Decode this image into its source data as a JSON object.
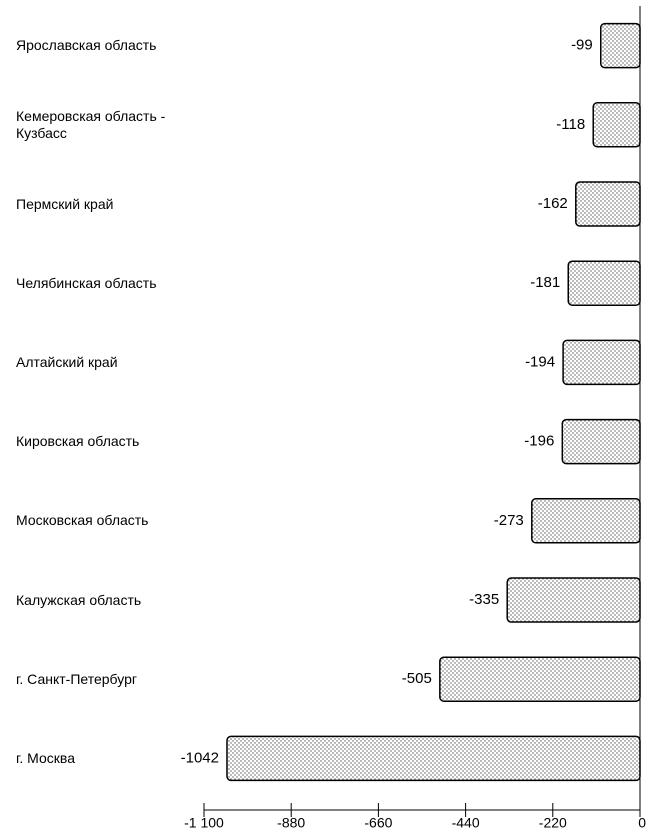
{
  "chart_data": {
    "type": "bar",
    "orientation": "horizontal",
    "categories": [
      "Ярославская область",
      "Кемеровская область - Кузбасс",
      "Пермский край",
      "Челябинская область",
      "Алтайский край",
      "Кировская область",
      "Московская область",
      "Калужская область",
      "г. Санкт-Петербург",
      "г. Москва"
    ],
    "values": [
      -99,
      -118,
      -162,
      -181,
      -194,
      -196,
      -273,
      -335,
      -505,
      -1042
    ],
    "color": "#ffffff",
    "xlim": [
      -1100,
      0
    ],
    "xticks": [
      {
        "value": -1100,
        "label": "-1 100"
      },
      -880,
      -660,
      -440,
      -220,
      0
    ],
    "grid": false
  }
}
